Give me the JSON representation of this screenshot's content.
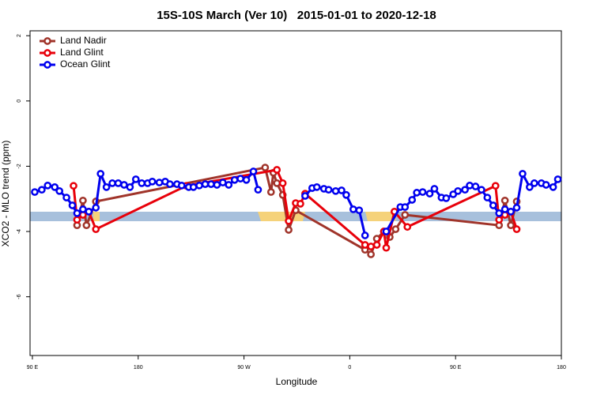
{
  "chart_data": {
    "type": "line",
    "title": "15S-10S March (Ver 10)   2015-01-01 to 2020-12-18",
    "x_label": "Longitude",
    "y_label": "XCO2 - MLO trend (ppm)",
    "xlim": [
      88,
      540
    ],
    "ylim": [
      -7.8,
      2.15
    ],
    "xticks": [
      {
        "value": 90,
        "label": "90 E"
      },
      180,
      {
        "value": 270,
        "label": "90 W"
      },
      {
        "value": 360,
        "label": "0"
      },
      {
        "value": 450,
        "label": "90 E"
      },
      180
    ],
    "yticks": [
      2,
      0,
      -2,
      -4,
      -6
    ],
    "legend": "top-left",
    "series": [
      {
        "name": "Land Nadir",
        "color": "#a0342a",
        "x": [
          128,
          133,
          136,
          144,
          288,
          293,
          295,
          298,
          303,
          308,
          314,
          373,
          378,
          383,
          389,
          394,
          399,
          407,
          487,
          492,
          497,
          502
        ],
        "values": [
          -3.81,
          -3.05,
          -3.81,
          -3.08,
          -2.04,
          -2.79,
          -2.2,
          -2.52,
          -2.88,
          -3.95,
          -3.35,
          -4.56,
          -4.7,
          -4.22,
          -4.0,
          -4.17,
          -3.93,
          -3.49,
          -3.81,
          -3.05,
          -3.81,
          -3.08
        ]
      },
      {
        "name": "Land Glint",
        "color": "#e8000a",
        "x": [
          125,
          128,
          133,
          138,
          144,
          221,
          298,
          303,
          308,
          314,
          318,
          322,
          373,
          378,
          383,
          389,
          391,
          398,
          409,
          484,
          487,
          492,
          497,
          502
        ],
        "values": [
          -2.6,
          -3.64,
          -3.49,
          -3.39,
          -3.93,
          -2.6,
          -2.11,
          -2.52,
          -3.68,
          -3.13,
          -3.15,
          -2.84,
          -4.41,
          -4.46,
          -4.41,
          -4.0,
          -4.5,
          -3.39,
          -3.86,
          -2.6,
          -3.64,
          -3.49,
          -3.39,
          -3.93
        ]
      },
      {
        "name": "Ocean Glint",
        "color": "#0000ee",
        "x": [
          92,
          98,
          103,
          109,
          113,
          119,
          124,
          128,
          133,
          138,
          144,
          148,
          153,
          158,
          163,
          168,
          173,
          178,
          183,
          188,
          192,
          198,
          203,
          207,
          213,
          217,
          223,
          227,
          232,
          237,
          242,
          247,
          252,
          257,
          262,
          267,
          272,
          278,
          282,
          null,
          322,
          328,
          332,
          338,
          342,
          348,
          353,
          357,
          363,
          368,
          373,
          null,
          391,
          403,
          407,
          413,
          417,
          422,
          428,
          432,
          438,
          442,
          448,
          452,
          458,
          462,
          467,
          472,
          477,
          482,
          487,
          492,
          497,
          502,
          507,
          513,
          517,
          523,
          527,
          533,
          537
        ],
        "values": [
          -2.79,
          -2.72,
          -2.59,
          -2.64,
          -2.76,
          -2.96,
          -3.2,
          -3.44,
          -3.32,
          -3.39,
          -3.27,
          -2.23,
          -2.64,
          -2.52,
          -2.52,
          -2.57,
          -2.64,
          -2.4,
          -2.52,
          -2.52,
          -2.47,
          -2.5,
          -2.47,
          -2.55,
          -2.55,
          -2.59,
          -2.64,
          -2.64,
          -2.59,
          -2.55,
          -2.55,
          -2.57,
          -2.5,
          -2.57,
          -2.42,
          -2.38,
          -2.42,
          -2.16,
          -2.72,
          null,
          -2.91,
          -2.67,
          -2.64,
          -2.69,
          -2.72,
          -2.76,
          -2.74,
          -2.88,
          -3.32,
          -3.35,
          -4.12,
          null,
          -4.0,
          -3.25,
          -3.25,
          -3.03,
          -2.81,
          -2.79,
          -2.84,
          -2.69,
          -2.96,
          -2.98,
          -2.86,
          -2.76,
          -2.72,
          -2.59,
          -2.62,
          -2.72,
          -2.96,
          -3.2,
          -3.44,
          -3.32,
          -3.39,
          -3.27,
          -2.23,
          -2.64,
          -2.52,
          -2.52,
          -2.57,
          -2.64,
          -2.4
        ]
      }
    ]
  }
}
